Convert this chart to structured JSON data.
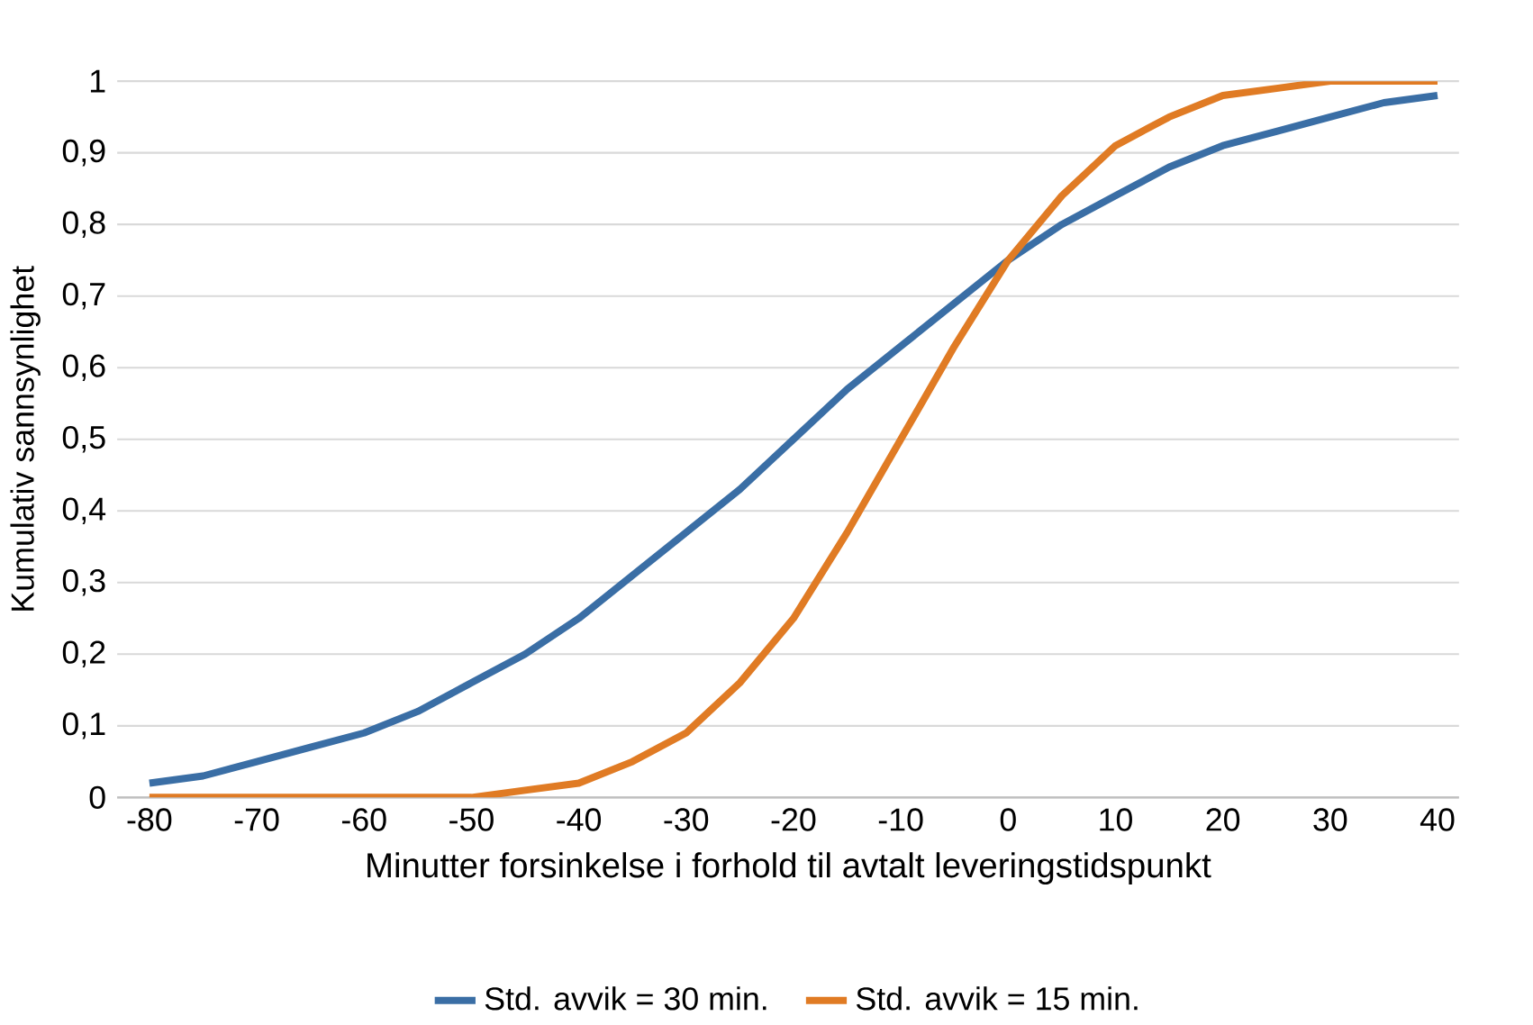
{
  "chart_data": {
    "type": "line",
    "xlabel": "Minutter forsinkelse i forhold til avtalt leveringstidspunkt",
    "ylabel": "Kumulativ sannsynlighet",
    "x": [
      -80,
      -75,
      -70,
      -65,
      -60,
      -55,
      -50,
      -45,
      -40,
      -35,
      -30,
      -25,
      -20,
      -15,
      -10,
      -5,
      0,
      5,
      10,
      15,
      20,
      25,
      30,
      35,
      40
    ],
    "series": [
      {
        "name": "Std. avvik = 30 min.",
        "color": "#3a6ea5",
        "values": [
          0.02,
          0.03,
          0.05,
          0.07,
          0.09,
          0.12,
          0.16,
          0.2,
          0.25,
          0.31,
          0.37,
          0.43,
          0.5,
          0.57,
          0.63,
          0.69,
          0.75,
          0.8,
          0.84,
          0.88,
          0.91,
          0.93,
          0.95,
          0.97,
          0.98
        ]
      },
      {
        "name": "Std. avvik = 15 min.",
        "color": "#e07b24",
        "values": [
          0,
          0,
          0,
          0,
          0,
          0,
          0,
          0.01,
          0.02,
          0.05,
          0.09,
          0.16,
          0.25,
          0.37,
          0.5,
          0.63,
          0.75,
          0.84,
          0.91,
          0.95,
          0.98,
          0.99,
          1,
          1,
          1
        ]
      }
    ],
    "xlim": [
      -83,
      42
    ],
    "ylim": [
      0,
      1
    ],
    "xticks": [
      -80,
      -70,
      -60,
      -50,
      -40,
      -30,
      -20,
      -10,
      0,
      10,
      20,
      30,
      40
    ],
    "yticks": [
      0,
      {
        "value": 0.1,
        "label": "0,1"
      },
      {
        "value": 0.2,
        "label": "0,2"
      },
      {
        "value": 0.3,
        "label": "0,3"
      },
      {
        "value": 0.4,
        "label": "0,4"
      },
      {
        "value": 0.5,
        "label": "0,5"
      },
      {
        "value": 0.6,
        "label": "0,6"
      },
      {
        "value": 0.7,
        "label": "0,7"
      },
      {
        "value": 0.8,
        "label": "0,8"
      },
      {
        "value": 0.9,
        "label": "0,9"
      },
      1
    ],
    "grid": "y",
    "legend": "bottom",
    "marker": "none",
    "line_style": "solid"
  }
}
